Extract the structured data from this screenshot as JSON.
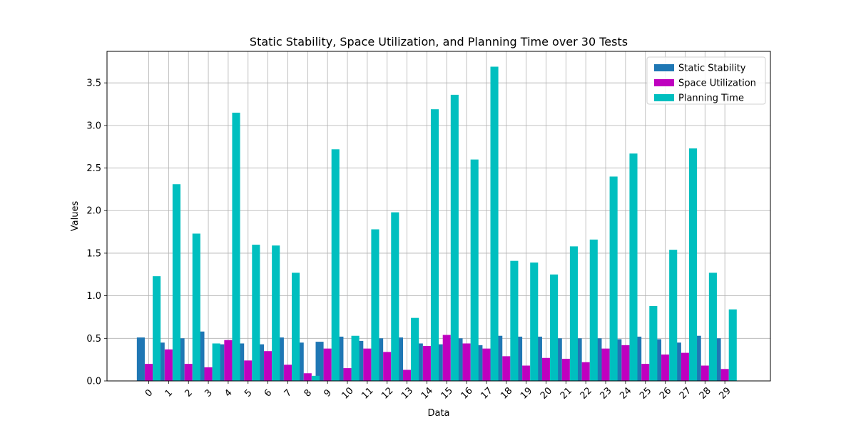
{
  "chart_data": {
    "type": "bar",
    "title": "Static Stability, Space Utilization, and Planning Time over 30 Tests",
    "xlabel": "Data",
    "ylabel": "Values",
    "categories": [
      "0",
      "1",
      "2",
      "3",
      "4",
      "5",
      "6",
      "7",
      "8",
      "9",
      "10",
      "11",
      "12",
      "13",
      "14",
      "15",
      "16",
      "17",
      "18",
      "19",
      "20",
      "21",
      "22",
      "23",
      "24",
      "25",
      "26",
      "27",
      "28",
      "29"
    ],
    "ylim": [
      0,
      3.87
    ],
    "yticks": [
      "0.0",
      "0.5",
      "1.0",
      "1.5",
      "2.0",
      "2.5",
      "3.0",
      "3.5"
    ],
    "grid": true,
    "legend_position": "top-right",
    "series": [
      {
        "name": "Static Stability",
        "color": "#1f77b4",
        "values": [
          0.51,
          0.45,
          0.5,
          0.58,
          0.43,
          0.44,
          0.43,
          0.51,
          0.45,
          0.46,
          0.52,
          0.47,
          0.5,
          0.51,
          0.44,
          0.43,
          0.5,
          0.42,
          0.53,
          0.52,
          0.52,
          0.5,
          0.5,
          0.5,
          0.49,
          0.52,
          0.49,
          0.45,
          0.53,
          0.5
        ]
      },
      {
        "name": "Space Utilization",
        "color": "#bf00bf",
        "values": [
          0.2,
          0.37,
          0.2,
          0.16,
          0.48,
          0.24,
          0.35,
          0.19,
          0.09,
          0.38,
          0.15,
          0.38,
          0.34,
          0.13,
          0.41,
          0.54,
          0.44,
          0.38,
          0.29,
          0.18,
          0.27,
          0.26,
          0.22,
          0.38,
          0.42,
          0.2,
          0.31,
          0.33,
          0.18,
          0.14
        ]
      },
      {
        "name": "Planning Time",
        "color": "#00bfbf",
        "values": [
          1.23,
          2.31,
          1.73,
          0.44,
          3.15,
          1.6,
          1.59,
          1.27,
          0.06,
          2.72,
          0.53,
          1.78,
          1.98,
          0.74,
          3.19,
          3.36,
          2.6,
          3.69,
          1.41,
          1.39,
          1.25,
          1.58,
          1.66,
          2.4,
          2.67,
          0.88,
          1.54,
          2.73,
          1.27,
          0.84
        ]
      }
    ]
  }
}
